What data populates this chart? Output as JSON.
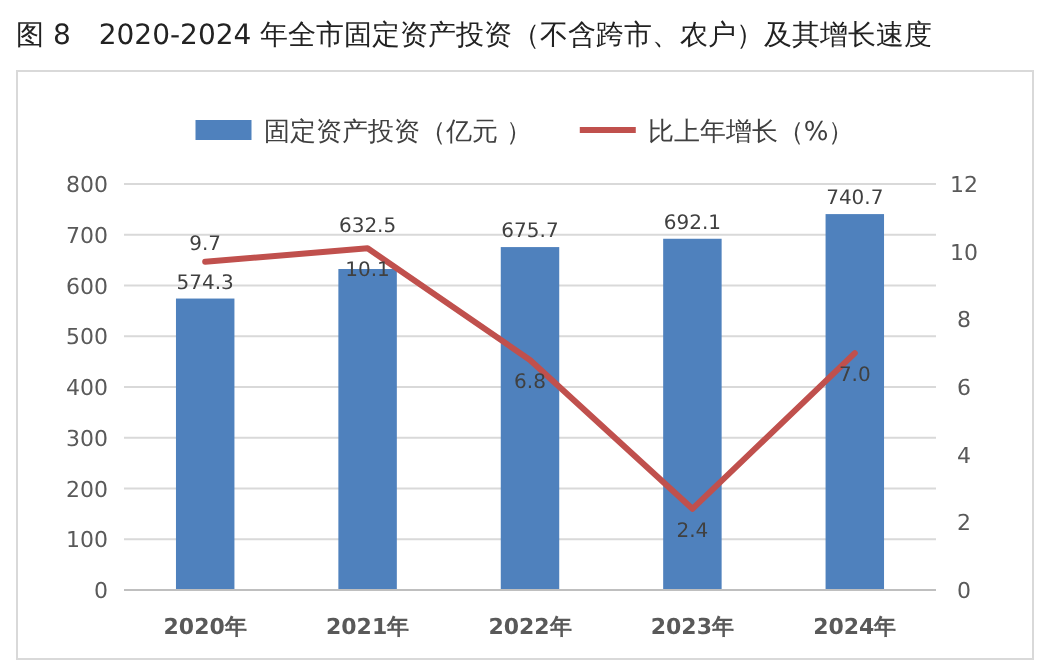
{
  "chart_data": {
    "type": "bar",
    "title": "图 8　2020-2024 年全市固定资产投资（不含跨市、农户）及其增长速度",
    "categories": [
      "2020年",
      "2021年",
      "2022年",
      "2023年",
      "2024年"
    ],
    "series": [
      {
        "name": "固定资产投资（亿元 ）",
        "color": "#4f81bd",
        "values": [
          574.3,
          632.5,
          675.7,
          692.1,
          740.7
        ],
        "value_labels": [
          "574.3",
          "632.5",
          "675.7",
          "692.1",
          "740.7"
        ]
      },
      {
        "name": "比上年增长（%）",
        "type": "line",
        "axis": "y2",
        "color": "#c0504d",
        "values": [
          9.7,
          10.1,
          6.8,
          2.4,
          7.0
        ],
        "value_labels": [
          "9.7",
          "10.1",
          "6.8",
          "2.4",
          "7.0"
        ]
      }
    ],
    "ylim": [
      0,
      800
    ],
    "yticks": [
      0,
      100,
      200,
      300,
      400,
      500,
      600,
      700,
      800
    ],
    "y2lim": [
      0,
      12
    ],
    "y2ticks": [
      0,
      2,
      4,
      6,
      8,
      10,
      12
    ],
    "grid": "y",
    "legend": "top",
    "marker": "none",
    "line_style": "solid"
  }
}
